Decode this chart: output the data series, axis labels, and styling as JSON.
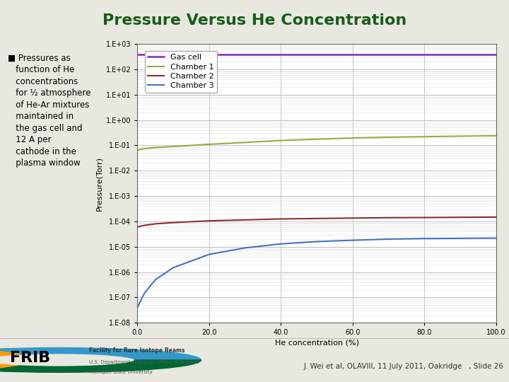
{
  "title": "Pressure Versus He Concentration",
  "title_color": "#1a5c1a",
  "title_fontsize": 16,
  "title_fontweight": "bold",
  "background_color": "#e8e8e0",
  "plot_bg_color": "#ffffff",
  "xlabel": "He concentration (%)",
  "ylabel": "Pressure(Torr)",
  "xlim": [
    0,
    100
  ],
  "ylim_log": [
    -8,
    3
  ],
  "x_ticks": [
    0.0,
    20.0,
    40.0,
    60.0,
    80.0,
    100.0
  ],
  "series": [
    {
      "label": "Gas cell",
      "color": "#7b2fbe",
      "x": [
        0,
        1,
        2,
        5,
        10,
        20,
        30,
        40,
        50,
        60,
        70,
        80,
        90,
        100
      ],
      "y": [
        380,
        380,
        380,
        380,
        380,
        380,
        380,
        380,
        380,
        380,
        380,
        380,
        380,
        380
      ],
      "linewidth": 1.8
    },
    {
      "label": "Chamber 1",
      "color": "#9aaa44",
      "x": [
        0,
        1,
        2,
        5,
        10,
        20,
        30,
        40,
        50,
        60,
        70,
        80,
        90,
        100
      ],
      "y": [
        0.065,
        0.07,
        0.075,
        0.082,
        0.09,
        0.11,
        0.13,
        0.155,
        0.175,
        0.195,
        0.21,
        0.22,
        0.23,
        0.24
      ],
      "linewidth": 1.5
    },
    {
      "label": "Chamber 2",
      "color": "#8b3030",
      "x": [
        0,
        1,
        2,
        5,
        10,
        20,
        30,
        40,
        50,
        60,
        70,
        80,
        90,
        100
      ],
      "y": [
        6e-05,
        6.5e-05,
        7e-05,
        8e-05,
        9e-05,
        0.000105,
        0.000115,
        0.000125,
        0.00013,
        0.000135,
        0.00014,
        0.000142,
        0.000145,
        0.000148
      ],
      "linewidth": 1.5
    },
    {
      "label": "Chamber 3",
      "color": "#4472c4",
      "x": [
        0,
        1,
        2,
        5,
        10,
        20,
        30,
        40,
        50,
        60,
        70,
        80,
        90,
        100
      ],
      "y": [
        4e-08,
        8e-08,
        1.5e-07,
        5e-07,
        1.5e-06,
        5e-06,
        9e-06,
        1.3e-05,
        1.6e-05,
        1.8e-05,
        2e-05,
        2.1e-05,
        2.15e-05,
        2.2e-05
      ],
      "linewidth": 1.5
    }
  ],
  "bullet_text": "■ Pressures as\n   function of He\n   concentrations\n   for ½ atmosphere\n   of He-Ar mixtures\n   maintained in\n   the gas cell and\n   12 A per\n   cathode in the\n   plasma window",
  "bullet_fontsize": 8.5,
  "footer_text": "J. Wei et al, OLAVIII, 11 July 2011, Oakridge   , Slide 26",
  "footer_fontsize": 7.5,
  "legend_fontsize": 8,
  "tick_fontsize": 7,
  "axis_label_fontsize": 8
}
